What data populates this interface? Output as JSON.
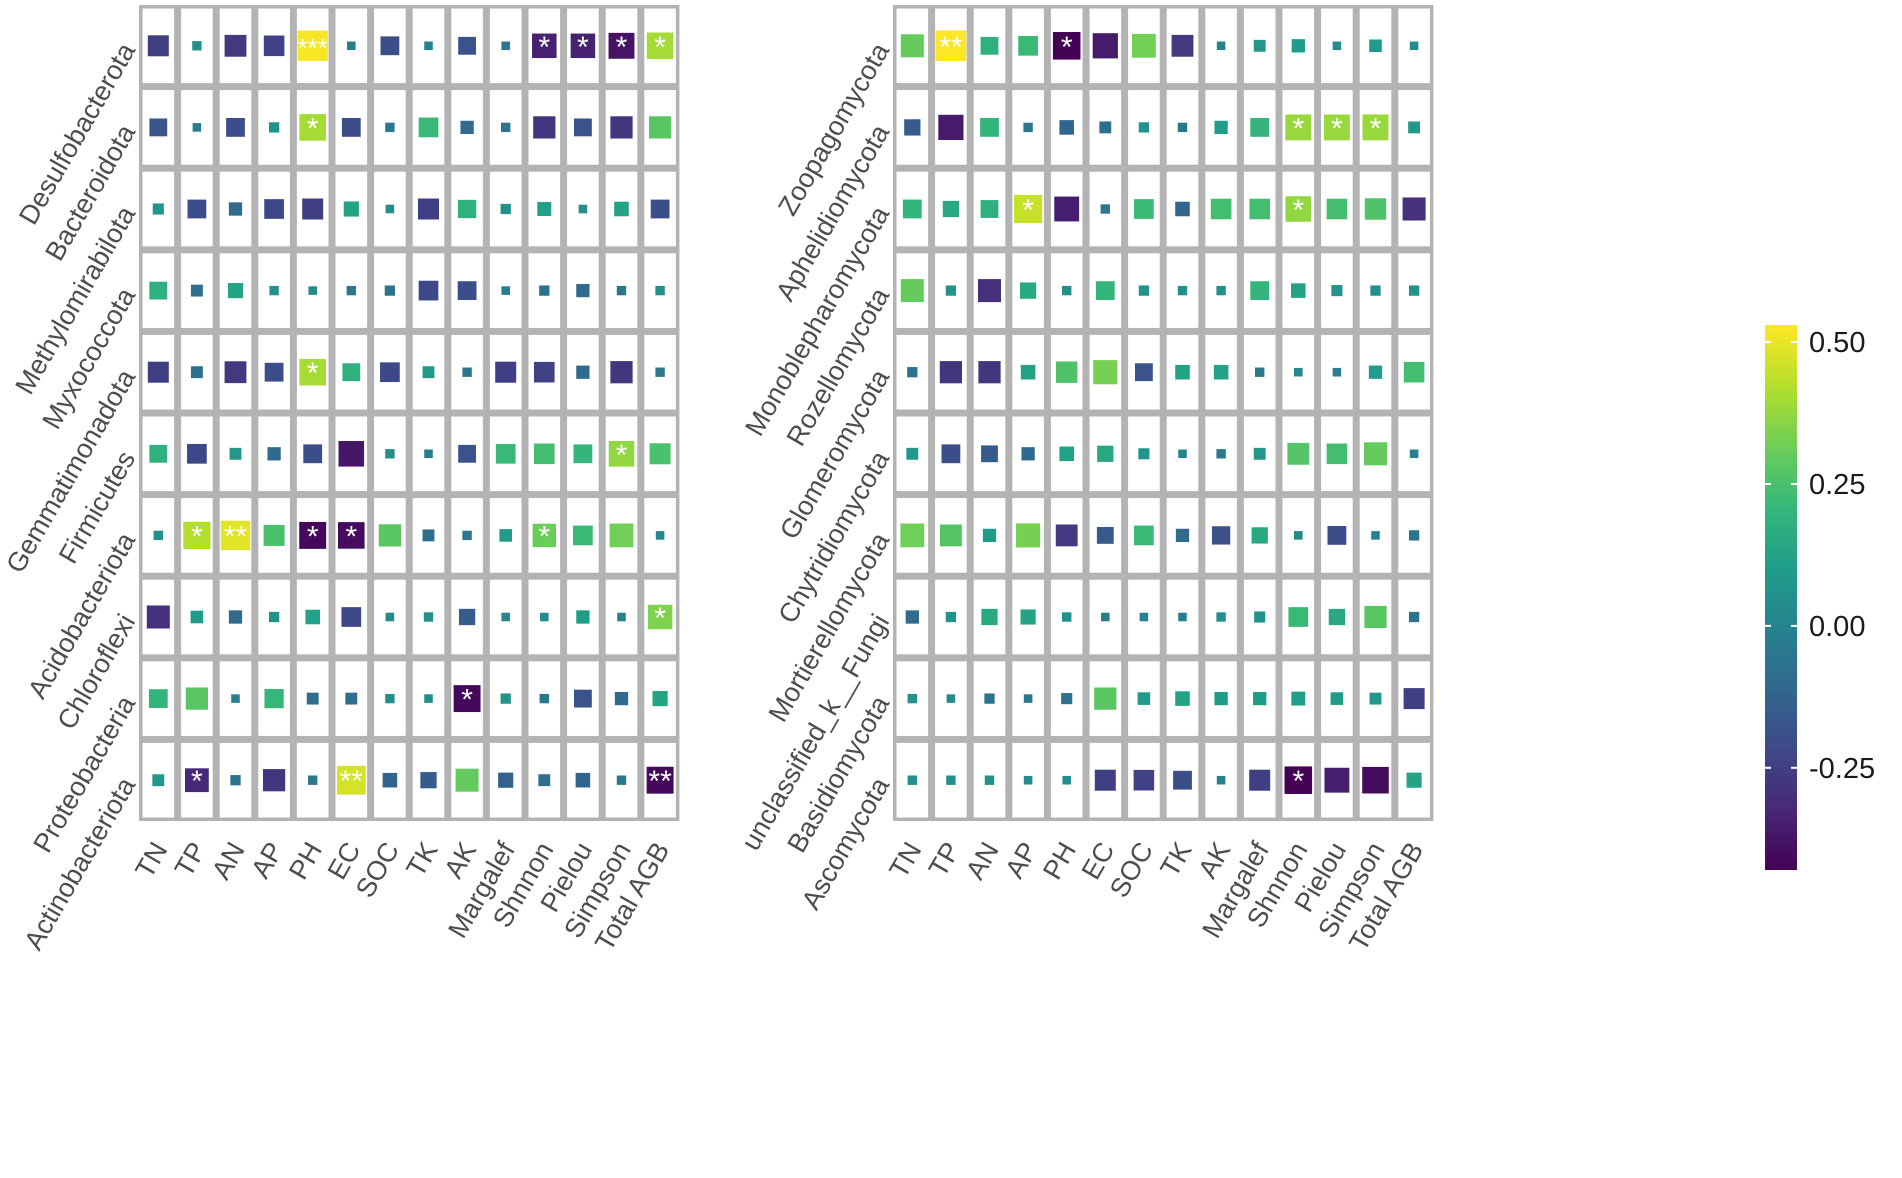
{
  "chart_data": [
    {
      "type": "heatmap",
      "title": "",
      "columns": [
        "TN",
        "TP",
        "AN",
        "AP",
        "PH",
        "EC",
        "SOC",
        "TK",
        "AK",
        "Margalef",
        "Shnnon",
        "Pielou",
        "Simpson",
        "Total AGB"
      ],
      "rows": [
        "Desulfobacterota",
        "Bacteroidota",
        "Methylomirabilota",
        "Myxococcota",
        "Gemmatimonadota",
        "Firmicutes",
        "Acidobacteriota",
        "Chloroflexi",
        "Proteobacteria",
        "Actinobacteriota"
      ],
      "values": [
        [
          -0.25,
          0.05,
          -0.27,
          -0.24,
          0.52,
          -0.03,
          -0.2,
          0.0,
          -0.18,
          -0.04,
          -0.34,
          -0.34,
          -0.38,
          0.4
        ],
        [
          -0.18,
          -0.02,
          -0.2,
          0.06,
          0.4,
          -0.2,
          -0.05,
          0.22,
          -0.1,
          -0.05,
          -0.28,
          -0.18,
          -0.28,
          0.28
        ],
        [
          0.07,
          -0.2,
          -0.1,
          -0.22,
          -0.25,
          0.13,
          0.04,
          -0.25,
          0.19,
          0.06,
          0.11,
          0.04,
          0.12,
          -0.2
        ],
        [
          0.18,
          -0.08,
          0.13,
          0.05,
          0.02,
          -0.05,
          -0.06,
          -0.22,
          -0.2,
          -0.03,
          -0.06,
          -0.1,
          -0.05,
          0.05
        ],
        [
          -0.25,
          -0.08,
          -0.27,
          -0.2,
          0.4,
          0.18,
          -0.22,
          0.08,
          -0.05,
          -0.25,
          -0.24,
          -0.1,
          -0.28,
          -0.05
        ],
        [
          0.18,
          -0.22,
          0.08,
          -0.1,
          -0.2,
          -0.37,
          0.05,
          -0.02,
          -0.18,
          0.22,
          0.24,
          0.2,
          0.37,
          0.25
        ],
        [
          0.05,
          0.42,
          0.49,
          0.25,
          -0.41,
          -0.4,
          0.28,
          -0.08,
          -0.05,
          0.09,
          0.31,
          0.22,
          0.32,
          0.02
        ],
        [
          -0.3,
          0.09,
          -0.1,
          0.06,
          0.12,
          -0.22,
          0.03,
          0.05,
          -0.15,
          0.02,
          0.04,
          0.1,
          0.0,
          0.34
        ],
        [
          0.2,
          0.28,
          0.0,
          0.21,
          -0.08,
          -0.08,
          0.05,
          0.04,
          -0.41,
          0.06,
          -0.05,
          -0.18,
          -0.1,
          0.13
        ],
        [
          0.08,
          -0.32,
          -0.06,
          -0.28,
          -0.05,
          0.47,
          -0.12,
          -0.15,
          0.3,
          -0.13,
          -0.08,
          -0.12,
          -0.05,
          -0.41
        ]
      ],
      "significance": [
        [
          "",
          "",
          "",
          "",
          "***",
          "",
          "",
          "",
          "",
          "",
          "*",
          "*",
          "*",
          "*"
        ],
        [
          "",
          "",
          "",
          "",
          "*",
          "",
          "",
          "",
          "",
          "",
          "",
          "",
          "",
          ""
        ],
        [
          "",
          "",
          "",
          "",
          "",
          "",
          "",
          "",
          "",
          "",
          "",
          "",
          "",
          ""
        ],
        [
          "",
          "",
          "",
          "",
          "",
          "",
          "",
          "",
          "",
          "",
          "",
          "",
          "",
          ""
        ],
        [
          "",
          "",
          "",
          "",
          "*",
          "",
          "",
          "",
          "",
          "",
          "",
          "",
          "",
          ""
        ],
        [
          "",
          "",
          "",
          "",
          "",
          "",
          "",
          "",
          "",
          "",
          "",
          "",
          "*",
          ""
        ],
        [
          "",
          "*",
          "**",
          "",
          "*",
          "*",
          "",
          "",
          "",
          "",
          "*",
          "",
          "",
          ""
        ],
        [
          "",
          "",
          "",
          "",
          "",
          "",
          "",
          "",
          "",
          "",
          "",
          "",
          "",
          "*"
        ],
        [
          "",
          "",
          "",
          "",
          "",
          "",
          "",
          "",
          "*",
          "",
          "",
          "",
          "",
          ""
        ],
        [
          "",
          "*",
          "",
          "",
          "",
          "**",
          "",
          "",
          "",
          "",
          "",
          "",
          "",
          "**"
        ]
      ]
    },
    {
      "type": "heatmap",
      "title": "",
      "columns": [
        "TN",
        "TP",
        "AN",
        "AP",
        "PH",
        "EC",
        "SOC",
        "TK",
        "AK",
        "Margalef",
        "Shnnon",
        "Pielou",
        "Simpson",
        "Total AGB"
      ],
      "rows": [
        "Zoopagomycota",
        "Aphelidiomycota",
        "Monoblepharomycota",
        "Rozellomycota",
        "Glomeromycota",
        "Chytridiomycota",
        "Mortierellomycota",
        "unclassified_k__Fungi",
        "Basidiomycota",
        "Ascomycota"
      ],
      "values": [
        [
          0.3,
          0.53,
          0.18,
          0.22,
          -0.43,
          -0.36,
          0.32,
          -0.27,
          0.0,
          0.08,
          0.1,
          0.04,
          0.09,
          0.04
        ],
        [
          -0.15,
          -0.36,
          0.2,
          -0.05,
          -0.12,
          -0.08,
          0.06,
          -0.05,
          0.1,
          0.2,
          0.38,
          0.38,
          0.38,
          0.08
        ],
        [
          0.2,
          0.15,
          0.18,
          0.45,
          -0.35,
          -0.05,
          0.22,
          -0.12,
          0.24,
          0.24,
          0.37,
          0.24,
          0.26,
          -0.3
        ],
        [
          0.3,
          0.06,
          -0.3,
          0.15,
          0.05,
          0.2,
          0.06,
          0.05,
          0.05,
          0.2,
          0.12,
          0.07,
          0.06,
          0.06
        ],
        [
          -0.06,
          -0.28,
          -0.28,
          0.12,
          0.26,
          0.33,
          -0.18,
          0.12,
          0.12,
          -0.05,
          0.02,
          -0.02,
          0.1,
          0.24
        ],
        [
          0.08,
          -0.2,
          -0.16,
          -0.1,
          0.12,
          0.15,
          0.07,
          0.0,
          -0.05,
          0.08,
          0.27,
          0.24,
          0.3,
          0.0
        ],
        [
          0.32,
          0.27,
          0.1,
          0.33,
          -0.27,
          -0.16,
          0.22,
          -0.1,
          -0.19,
          0.15,
          0.02,
          -0.2,
          0.0,
          -0.06
        ],
        [
          -0.1,
          0.06,
          0.15,
          0.13,
          0.05,
          -0.03,
          0.0,
          -0.02,
          0.05,
          0.07,
          0.22,
          0.15,
          0.28,
          -0.06
        ],
        [
          0.05,
          0.03,
          -0.06,
          -0.04,
          -0.07,
          0.28,
          0.09,
          0.12,
          0.1,
          0.1,
          0.11,
          0.09,
          0.08,
          -0.25
        ],
        [
          0.05,
          0.05,
          0.05,
          0.03,
          0.04,
          -0.25,
          -0.24,
          -0.2,
          0.0,
          -0.25,
          -0.43,
          -0.35,
          -0.4,
          0.13
        ]
      ],
      "significance": [
        [
          "",
          "**",
          "",
          "",
          "*",
          "",
          "",
          "",
          "",
          "",
          "",
          "",
          "",
          ""
        ],
        [
          "",
          "",
          "",
          "",
          "",
          "",
          "",
          "",
          "",
          "",
          "*",
          "*",
          "*",
          ""
        ],
        [
          "",
          "",
          "",
          "*",
          "",
          "",
          "",
          "",
          "",
          "",
          "*",
          "",
          "",
          ""
        ],
        [
          "",
          "",
          "",
          "",
          "",
          "",
          "",
          "",
          "",
          "",
          "",
          "",
          "",
          ""
        ],
        [
          "",
          "",
          "",
          "",
          "",
          "",
          "",
          "",
          "",
          "",
          "",
          "",
          "",
          ""
        ],
        [
          "",
          "",
          "",
          "",
          "",
          "",
          "",
          "",
          "",
          "",
          "",
          "",
          "",
          ""
        ],
        [
          "",
          "",
          "",
          "",
          "",
          "",
          "",
          "",
          "",
          "",
          "",
          "",
          "",
          ""
        ],
        [
          "",
          "",
          "",
          "",
          "",
          "",
          "",
          "",
          "",
          "",
          "",
          "",
          "",
          ""
        ],
        [
          "",
          "",
          "",
          "",
          "",
          "",
          "",
          "",
          "",
          "",
          "",
          "",
          "",
          ""
        ],
        [
          "",
          "",
          "",
          "",
          "",
          "",
          "",
          "",
          "",
          "",
          "*",
          "",
          "",
          ""
        ]
      ]
    }
  ],
  "colorbar": {
    "range": [
      -0.43,
      0.53
    ],
    "ticks": [
      0.5,
      0.25,
      0.0,
      -0.25
    ],
    "tick_labels": [
      "0.50",
      "0.25",
      "0.00",
      "-0.25"
    ]
  },
  "colors": {
    "grid": "#b3b3b3",
    "cell_bg": "#ffffff",
    "star": "#ffffff",
    "viridis": [
      "#440154",
      "#482878",
      "#3e4989",
      "#31688e",
      "#26828e",
      "#1f9e89",
      "#35b779",
      "#6ece58",
      "#b5de2b",
      "#fde725"
    ]
  }
}
